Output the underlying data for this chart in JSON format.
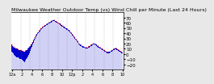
{
  "title": "Milwaukee Weather Outdoor Temp (vs) Wind Chill per Minute (Last 24 Hours)",
  "bg_color": "#e8e8e8",
  "plot_bg_color": "#ffffff",
  "bar_color": "#0000cc",
  "line_color": "#ff0000",
  "ylim": [
    -30,
    80
  ],
  "yticks": [
    -20,
    -10,
    0,
    10,
    20,
    30,
    40,
    50,
    60,
    70
  ],
  "n_points": 144,
  "outdoor_temp": [
    18,
    16,
    14,
    13,
    12,
    11,
    10,
    10,
    9,
    8,
    8,
    7,
    7,
    6,
    6,
    5,
    5,
    5,
    6,
    7,
    8,
    10,
    12,
    14,
    16,
    18,
    20,
    23,
    26,
    29,
    32,
    35,
    38,
    40,
    42,
    44,
    46,
    48,
    50,
    51,
    52,
    53,
    54,
    55,
    56,
    57,
    58,
    59,
    60,
    61,
    62,
    63,
    64,
    65,
    65,
    65,
    64,
    63,
    62,
    61,
    60,
    59,
    58,
    57,
    56,
    55,
    54,
    53,
    52,
    51,
    50,
    49,
    48,
    47,
    46,
    44,
    42,
    40,
    38,
    36,
    34,
    32,
    30,
    28,
    26,
    24,
    22,
    20,
    19,
    18,
    17,
    16,
    15,
    14,
    14,
    13,
    13,
    13,
    13,
    14,
    15,
    16,
    17,
    18,
    19,
    20,
    20,
    20,
    19,
    18,
    17,
    16,
    15,
    14,
    13,
    12,
    11,
    10,
    9,
    8,
    7,
    6,
    5,
    4,
    4,
    4,
    4,
    5,
    6,
    7,
    8,
    9,
    10,
    11,
    12,
    11,
    10,
    9,
    8,
    7,
    6,
    5,
    4,
    3
  ],
  "wind_chill": [
    5,
    3,
    1,
    -1,
    -3,
    -5,
    -6,
    -7,
    -7,
    -8,
    -9,
    -10,
    -10,
    -11,
    -12,
    -13,
    -14,
    -15,
    -12,
    -10,
    -8,
    -5,
    -2,
    2,
    6,
    10,
    14,
    18,
    22,
    26,
    30,
    33,
    36,
    38,
    40,
    42,
    44,
    46,
    48,
    49,
    50,
    51,
    52,
    53,
    54,
    55,
    56,
    57,
    58,
    59,
    60,
    61,
    62,
    63,
    63,
    63,
    62,
    61,
    60,
    59,
    58,
    57,
    56,
    55,
    54,
    53,
    52,
    51,
    50,
    49,
    48,
    47,
    46,
    45,
    44,
    42,
    40,
    38,
    36,
    34,
    32,
    30,
    28,
    26,
    24,
    22,
    20,
    18,
    17,
    16,
    15,
    14,
    13,
    12,
    12,
    11,
    11,
    11,
    11,
    12,
    13,
    14,
    15,
    16,
    17,
    18,
    18,
    18,
    17,
    16,
    15,
    14,
    13,
    12,
    11,
    10,
    9,
    8,
    7,
    6,
    5,
    4,
    3,
    2,
    2,
    2,
    2,
    3,
    4,
    5,
    6,
    7,
    8,
    9,
    10,
    9,
    8,
    7,
    6,
    5,
    4,
    3,
    2,
    1
  ],
  "xlabel_times": [
    "12a",
    "2",
    "4",
    "6",
    "8",
    "10",
    "12p",
    "2",
    "4",
    "6",
    "8",
    "10"
  ],
  "tick_fontsize": 4,
  "title_fontsize": 4.5
}
